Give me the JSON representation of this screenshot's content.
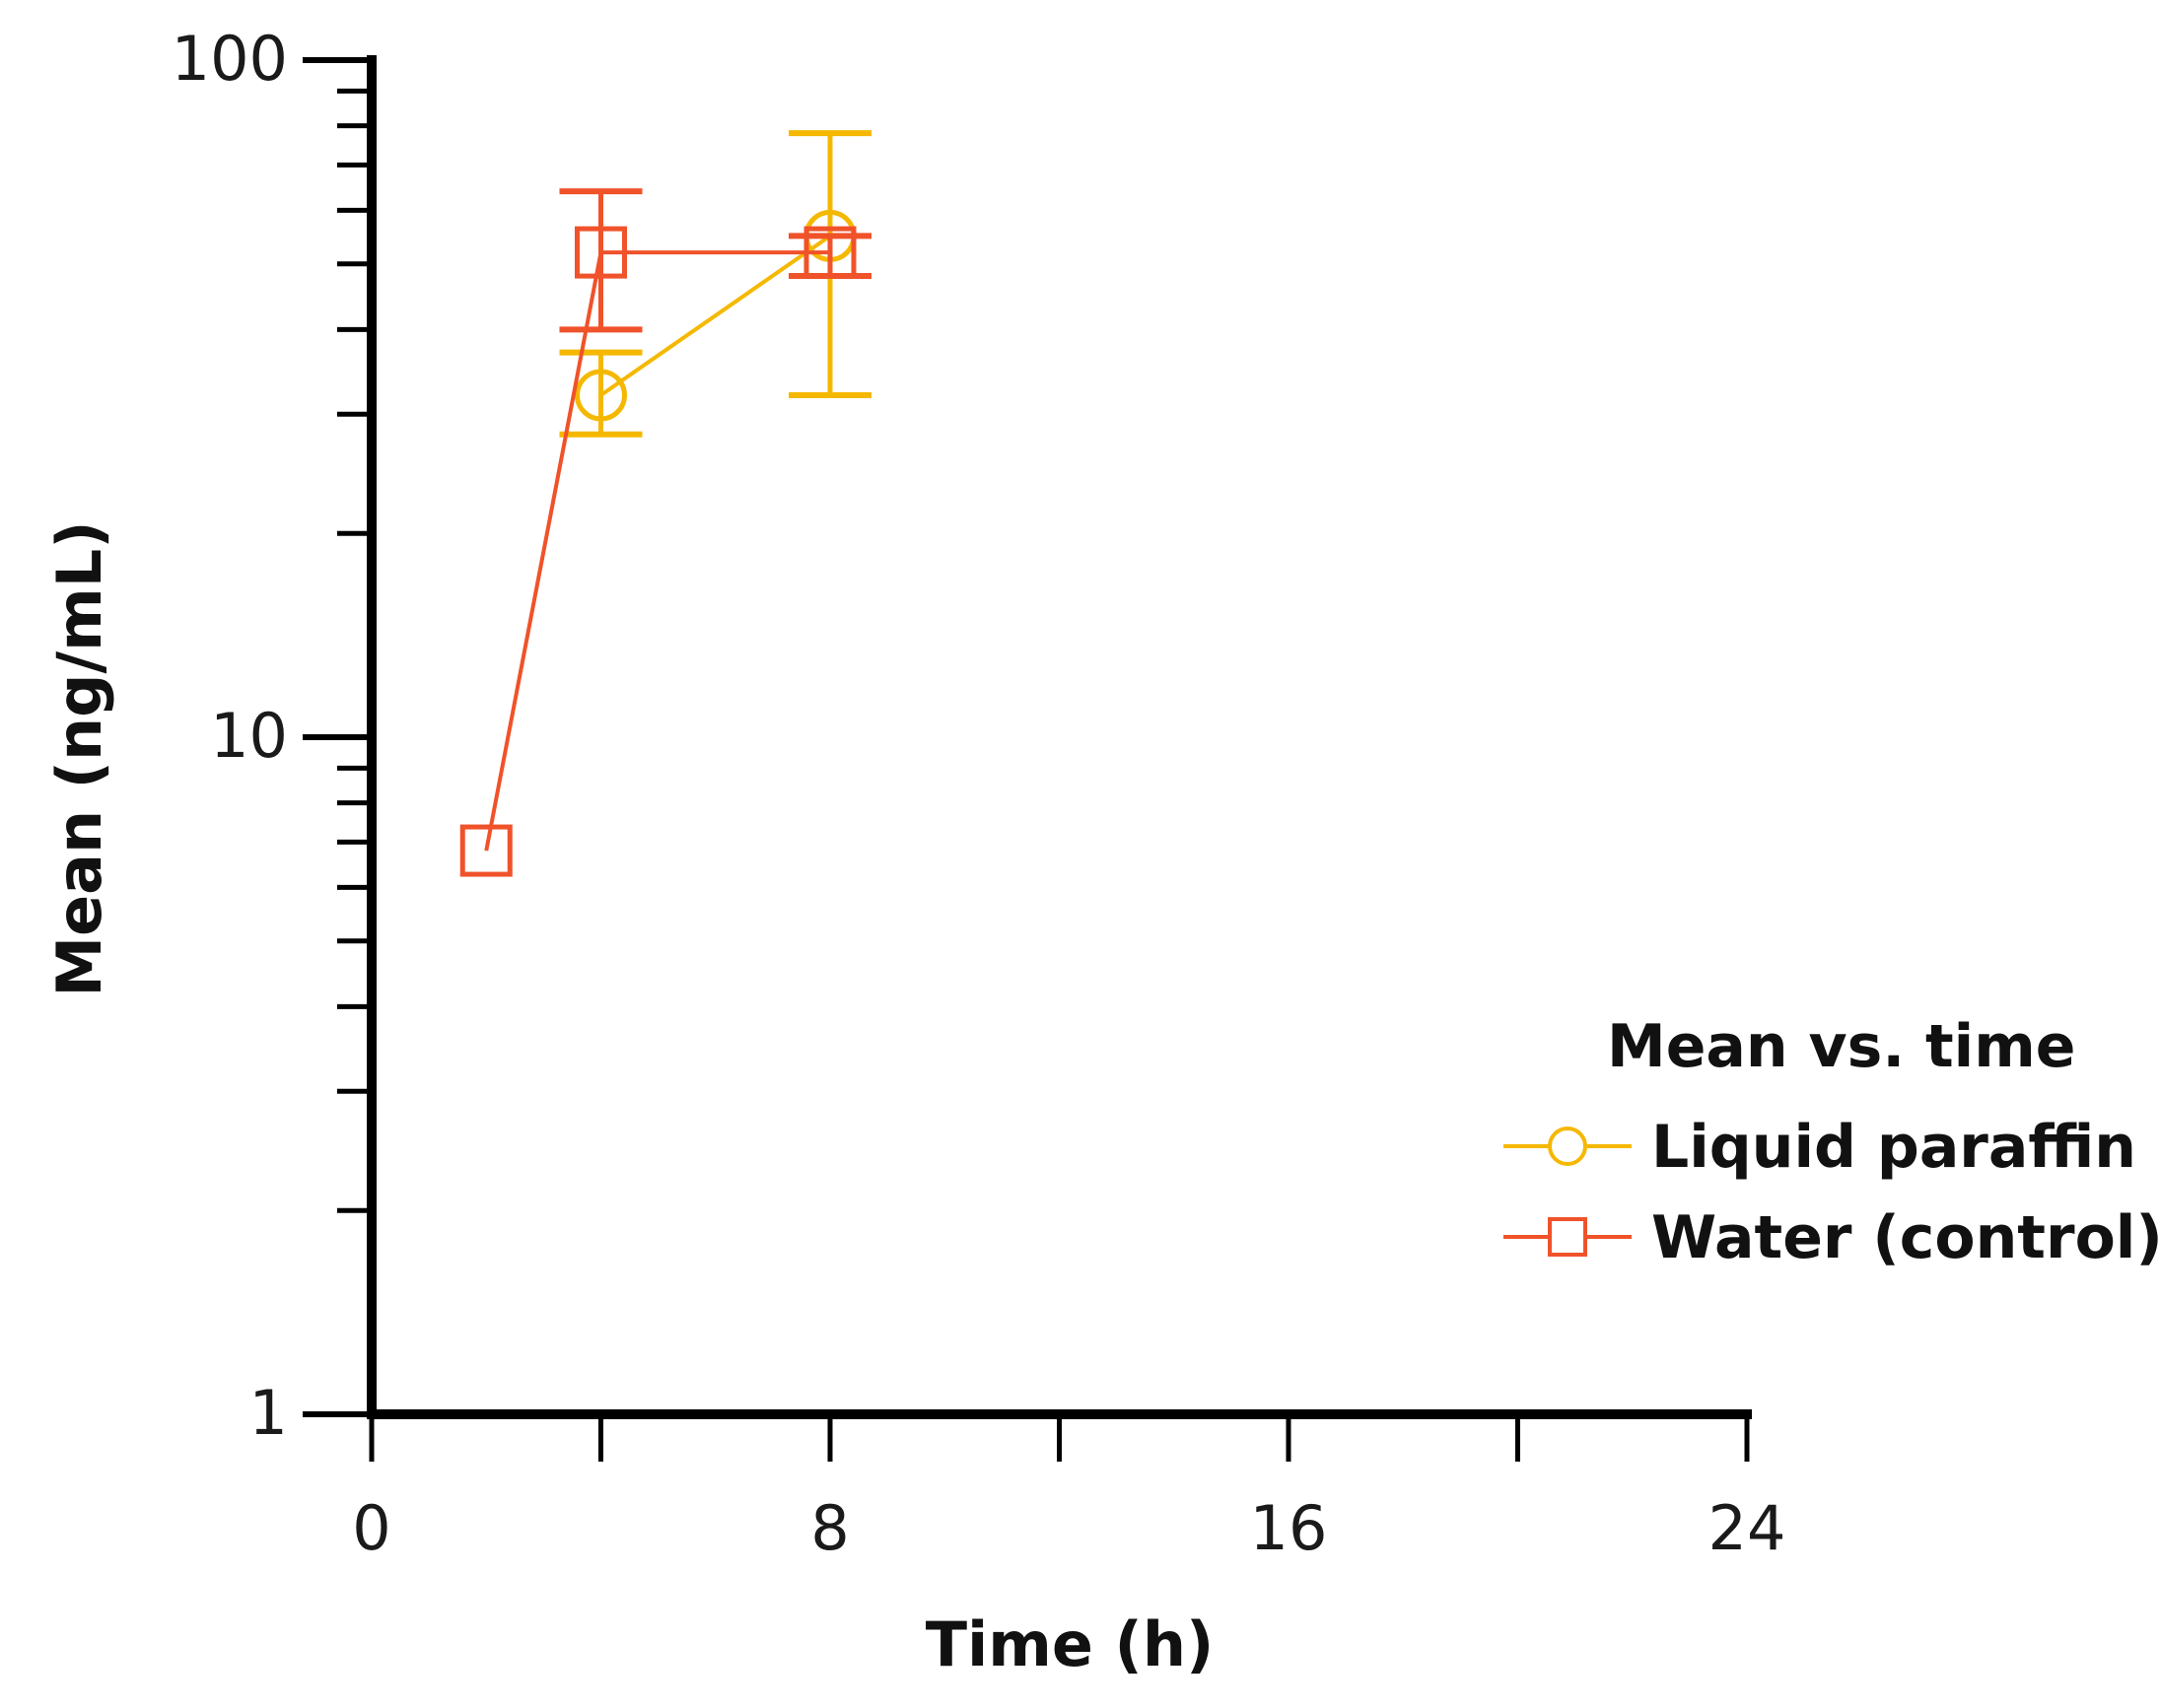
{
  "chart_data": {
    "type": "line",
    "title": "",
    "xlabel": "Time (h)",
    "ylabel": "Mean (ng/mL)",
    "xlim": [
      0,
      24
    ],
    "ylim": [
      1,
      100
    ],
    "yscale": "log",
    "grid": false,
    "x_ticks": [
      0,
      8,
      16,
      24
    ],
    "x_tick_labels": [
      "0",
      "8",
      "16",
      "24"
    ],
    "y_ticks": [
      1,
      10,
      100
    ],
    "y_tick_labels": [
      "1",
      "10",
      "100"
    ],
    "legend": {
      "title": "Mean vs. time",
      "position": "right"
    },
    "series": [
      {
        "name": "Liquid paraffin",
        "color": "#F5B800",
        "marker": "circle",
        "x": [
          4,
          8
        ],
        "values": [
          32,
          55
        ],
        "err_low": [
          28,
          32
        ],
        "err_high": [
          37,
          78
        ]
      },
      {
        "name": "Water (control)",
        "color": "#F0522A",
        "marker": "square",
        "x": [
          2,
          4,
          8
        ],
        "values": [
          6.8,
          52,
          52
        ],
        "err_low": [
          6.8,
          40,
          48
        ],
        "err_high": [
          6.8,
          64,
          55
        ]
      }
    ]
  }
}
